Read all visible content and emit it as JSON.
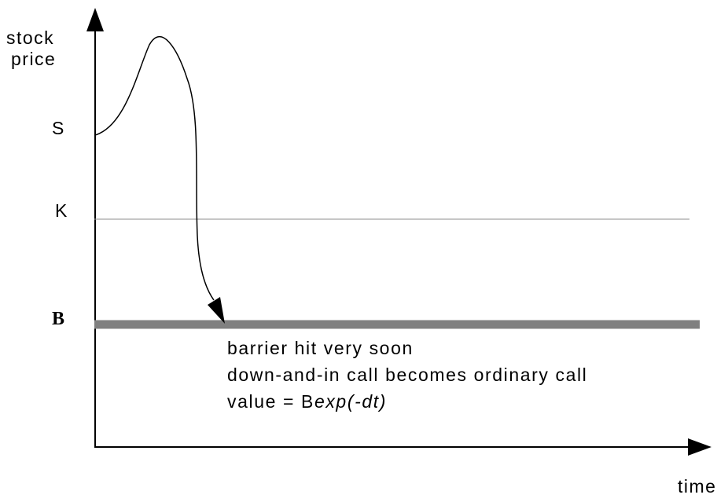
{
  "axes": {
    "y_label_line1": "stock",
    "y_label_line2": "price",
    "x_label": "time"
  },
  "levels": {
    "s_label": "S",
    "k_label": "K",
    "b_label": "B"
  },
  "annotation": {
    "line1": "barrier hit very soon",
    "line2": "down-and-in call becomes ordinary call",
    "line3_prefix": "value = B",
    "line3_italic": "exp(-dt)"
  },
  "colors": {
    "axis": "#000000",
    "strike_line": "#8c8c8c",
    "barrier_line": "#808080",
    "path": "#000000"
  }
}
